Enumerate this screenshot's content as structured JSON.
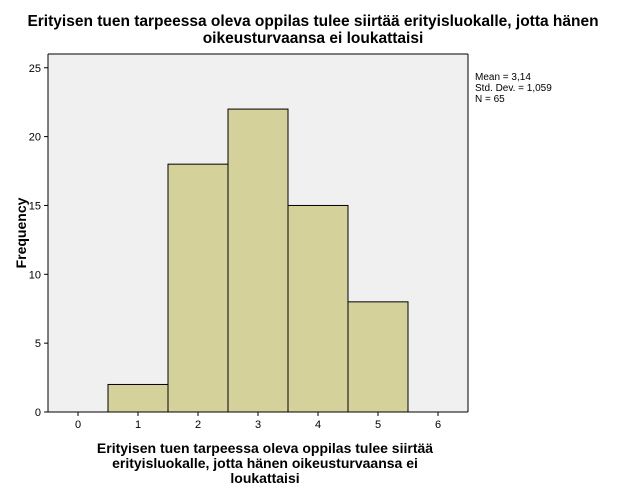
{
  "title_lines": [
    "Erityisen tuen tarpeessa oleva oppilas tulee siirtää erityisluokalle, jotta hänen",
    "oikeusturvaansa ei loukattaisi"
  ],
  "stats": {
    "mean": "Mean = 3,14",
    "std_dev": "Std. Dev. = 1,059",
    "n": "N = 65"
  },
  "xlabel_lines": [
    "Erityisen tuen tarpeessa oleva oppilas tulee siirtää",
    "erityisluokalle, jotta hänen oikeusturvaansa ei",
    "loukattaisi"
  ],
  "colors": {
    "bar_fill": "#d5d19b",
    "plot_background": "#f0f0f0",
    "bar_stroke": "#000000"
  },
  "chart_data": {
    "type": "bar",
    "title": "Erityisen tuen tarpeessa oleva oppilas tulee siirtää erityisluokalle, jotta hänen oikeusturvaansa ei loukattaisi",
    "xlabel": "Erityisen tuen tarpeessa oleva oppilas tulee siirtää erityisluokalle, jotta hänen oikeusturvaansa ei loukattaisi",
    "ylabel": "Frequency",
    "categories": [
      "1",
      "2",
      "3",
      "4",
      "5"
    ],
    "values": [
      2,
      18,
      22,
      15,
      8
    ],
    "bins": [
      [
        0.5,
        1.5
      ],
      [
        1.5,
        2.5
      ],
      [
        2.5,
        3.5
      ],
      [
        3.5,
        4.5
      ],
      [
        4.5,
        5.5
      ]
    ],
    "xlim": [
      -0.5,
      6.5
    ],
    "ylim": [
      0,
      26
    ],
    "x_ticks": [
      "0",
      "1",
      "2",
      "3",
      "4",
      "5",
      "6"
    ],
    "y_ticks": [
      "0",
      "5",
      "10",
      "15",
      "20",
      "25"
    ],
    "grid": false,
    "legend": "none"
  }
}
